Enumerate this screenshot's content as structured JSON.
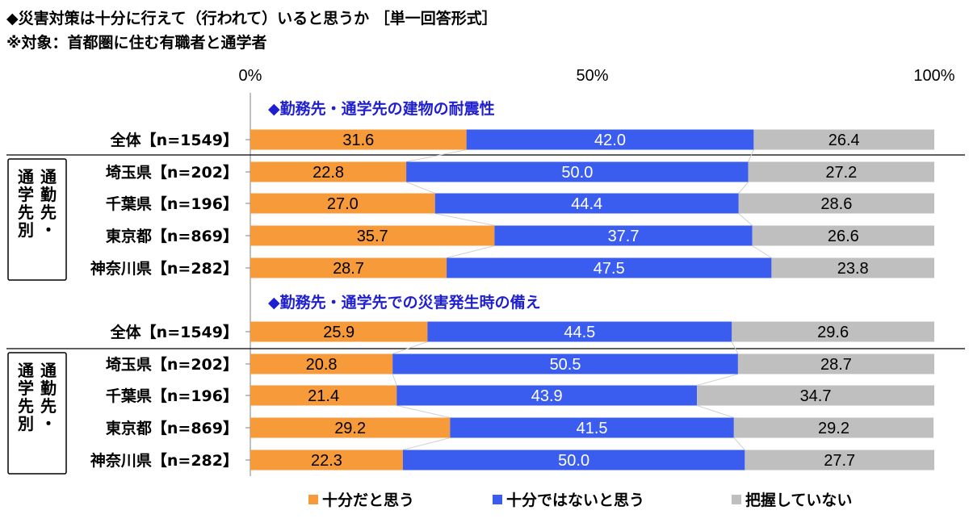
{
  "title": "◆災害対策は十分に行えて（行われて）いると思うか ［単一回答形式］",
  "subtitle": "※対象：首都圏に住む有職者と通学者",
  "chart_data": {
    "type": "bar",
    "orientation": "horizontal",
    "stacked": true,
    "xlim": [
      0,
      100
    ],
    "x_ticks": [
      "0%",
      "50%",
      "100%"
    ],
    "group_label_lines": [
      "通勤先・",
      "通学先別"
    ],
    "legend_position": "bottom",
    "series": [
      {
        "name": "十分だと思う",
        "color": "#f79a3a"
      },
      {
        "name": "十分ではないと思う",
        "color": "#3a5df0"
      },
      {
        "name": "把握していない",
        "color": "#bfbfbf"
      }
    ],
    "sections": [
      {
        "title": "◆勤務先・通学先の建物の耐震性",
        "rows": [
          {
            "label": "全体【n=1549】",
            "values": [
              31.6,
              42.0,
              26.4
            ]
          },
          {
            "label": "埼玉県【n=202】",
            "values": [
              22.8,
              50.0,
              27.2
            ]
          },
          {
            "label": "千葉県【n=196】",
            "values": [
              27.0,
              44.4,
              28.6
            ]
          },
          {
            "label": "東京都【n=869】",
            "values": [
              35.7,
              37.7,
              26.6
            ]
          },
          {
            "label": "神奈川県【n=282】",
            "values": [
              28.7,
              47.5,
              23.8
            ]
          }
        ]
      },
      {
        "title": "◆勤務先・通学先での災害発生時の備え",
        "rows": [
          {
            "label": "全体【n=1549】",
            "values": [
              25.9,
              44.5,
              29.6
            ]
          },
          {
            "label": "埼玉県【n=202】",
            "values": [
              20.8,
              50.5,
              28.7
            ]
          },
          {
            "label": "千葉県【n=196】",
            "values": [
              21.4,
              43.9,
              34.7
            ]
          },
          {
            "label": "東京都【n=869】",
            "values": [
              29.2,
              41.5,
              29.2
            ]
          },
          {
            "label": "神奈川県【n=282】",
            "values": [
              22.3,
              50.0,
              27.7
            ]
          }
        ]
      }
    ]
  }
}
